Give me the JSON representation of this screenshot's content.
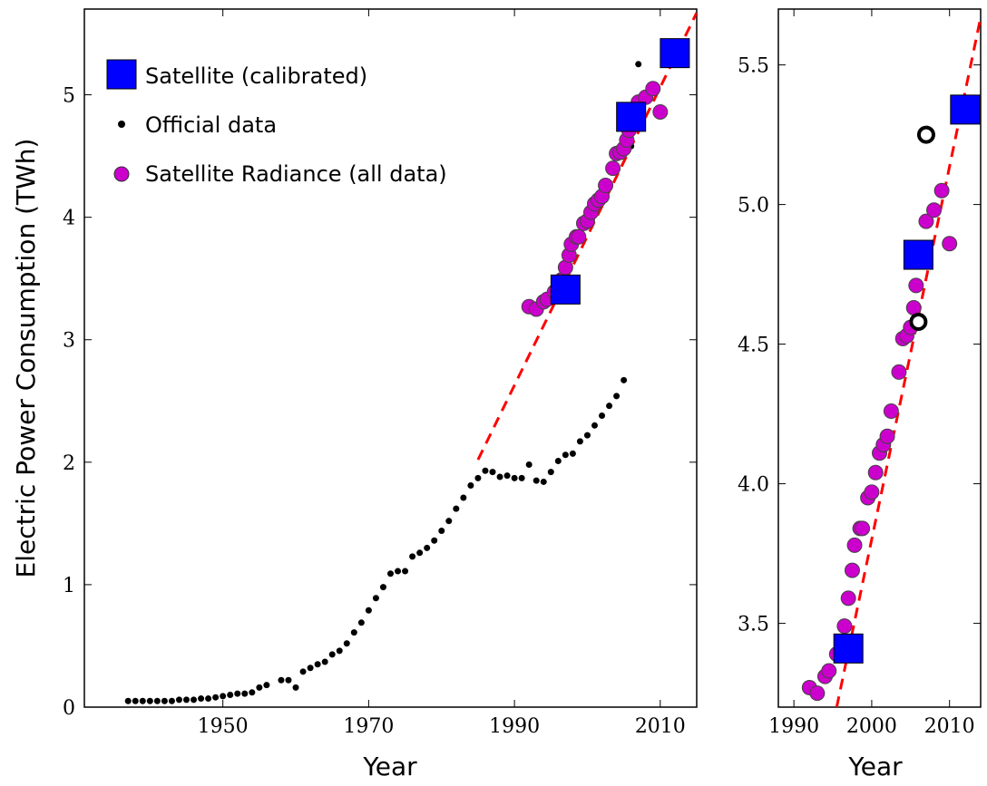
{
  "chart_data": [
    {
      "type": "scatter",
      "xlabel": "Year",
      "ylabel": "Electric Power Consumption (TWh)",
      "xlim": [
        1931,
        2015
      ],
      "ylim": [
        0,
        5.7
      ],
      "xticks": [
        "1950",
        "1970",
        "1990",
        "2010"
      ],
      "yticks": [
        "0",
        "1",
        "2",
        "3",
        "4",
        "5"
      ],
      "legend_position": "top-left",
      "legend": [
        "Satellite (calibrated)",
        "Official data",
        "Satellite Radiance (all data)"
      ],
      "series": [
        {
          "name": "Satellite (calibrated)",
          "marker": "square",
          "color": "#0000ff",
          "points": [
            [
              1997,
              3.41
            ],
            [
              2006,
              4.82
            ],
            [
              2012,
              5.34
            ]
          ]
        },
        {
          "name": "Official data",
          "marker": "dot",
          "color": "#000000",
          "points": [
            [
              1937,
              0.05
            ],
            [
              1938,
              0.05
            ],
            [
              1939,
              0.05
            ],
            [
              1940,
              0.05
            ],
            [
              1941,
              0.05
            ],
            [
              1942,
              0.05
            ],
            [
              1943,
              0.05
            ],
            [
              1944,
              0.06
            ],
            [
              1945,
              0.06
            ],
            [
              1946,
              0.06
            ],
            [
              1947,
              0.07
            ],
            [
              1948,
              0.07
            ],
            [
              1949,
              0.08
            ],
            [
              1950,
              0.09
            ],
            [
              1951,
              0.1
            ],
            [
              1952,
              0.11
            ],
            [
              1953,
              0.11
            ],
            [
              1954,
              0.12
            ],
            [
              1955,
              0.16
            ],
            [
              1956,
              0.18
            ],
            [
              1958,
              0.22
            ],
            [
              1959,
              0.22
            ],
            [
              1960,
              0.16
            ],
            [
              1961,
              0.29
            ],
            [
              1962,
              0.32
            ],
            [
              1963,
              0.35
            ],
            [
              1964,
              0.37
            ],
            [
              1965,
              0.43
            ],
            [
              1966,
              0.46
            ],
            [
              1967,
              0.52
            ],
            [
              1968,
              0.61
            ],
            [
              1969,
              0.69
            ],
            [
              1970,
              0.79
            ],
            [
              1971,
              0.89
            ],
            [
              1972,
              0.98
            ],
            [
              1973,
              1.09
            ],
            [
              1974,
              1.11
            ],
            [
              1975,
              1.11
            ],
            [
              1976,
              1.23
            ],
            [
              1977,
              1.26
            ],
            [
              1978,
              1.3
            ],
            [
              1979,
              1.36
            ],
            [
              1980,
              1.44
            ],
            [
              1981,
              1.52
            ],
            [
              1982,
              1.62
            ],
            [
              1983,
              1.71
            ],
            [
              1984,
              1.81
            ],
            [
              1985,
              1.87
            ],
            [
              1986,
              1.93
            ],
            [
              1987,
              1.92
            ],
            [
              1988,
              1.88
            ],
            [
              1989,
              1.89
            ],
            [
              1990,
              1.87
            ],
            [
              1991,
              1.87
            ],
            [
              1992,
              1.98
            ],
            [
              1993,
              1.85
            ],
            [
              1994,
              1.84
            ],
            [
              1995,
              1.92
            ],
            [
              1996,
              2.01
            ],
            [
              1997,
              2.06
            ],
            [
              1998,
              2.07
            ],
            [
              1999,
              2.17
            ],
            [
              2000,
              2.22
            ],
            [
              2001,
              2.3
            ],
            [
              2002,
              2.38
            ],
            [
              2003,
              2.46
            ],
            [
              2004,
              2.54
            ],
            [
              2005,
              2.67
            ],
            [
              2006,
              4.58
            ],
            [
              2007,
              5.25
            ]
          ]
        },
        {
          "name": "Satellite Radiance (all data)",
          "marker": "circle",
          "color": "#cc00cc",
          "points": [
            [
              1992,
              3.27
            ],
            [
              1993,
              3.25
            ],
            [
              1994,
              3.31
            ],
            [
              1994.5,
              3.33
            ],
            [
              1995.5,
              3.39
            ],
            [
              1996.5,
              3.49
            ],
            [
              1997,
              3.59
            ],
            [
              1997.5,
              3.69
            ],
            [
              1997.8,
              3.78
            ],
            [
              1998.5,
              3.84
            ],
            [
              1998.8,
              3.84
            ],
            [
              1999.5,
              3.95
            ],
            [
              2000,
              3.97
            ],
            [
              2000.5,
              4.04
            ],
            [
              2001,
              4.11
            ],
            [
              2001.5,
              4.14
            ],
            [
              2002,
              4.17
            ],
            [
              2002.5,
              4.26
            ],
            [
              2003.5,
              4.4
            ],
            [
              2004,
              4.52
            ],
            [
              2004.5,
              4.53
            ],
            [
              2005,
              4.56
            ],
            [
              2005.4,
              4.63
            ],
            [
              2005.7,
              4.71
            ],
            [
              2006.2,
              4.82
            ],
            [
              2006.6,
              4.81
            ],
            [
              2007,
              4.94
            ],
            [
              2008,
              4.98
            ],
            [
              2009,
              5.05
            ],
            [
              2010,
              4.86
            ]
          ]
        },
        {
          "name": "",
          "marker": "dashed-line",
          "color": "#ff0000",
          "points": [
            [
              1985,
              2.02
            ],
            [
              2015,
              5.67
            ]
          ]
        }
      ]
    },
    {
      "type": "scatter",
      "xlabel": "Year",
      "ylabel": "",
      "xlim": [
        1988,
        2014
      ],
      "ylim": [
        3.2,
        5.7
      ],
      "xticks": [
        "1990",
        "2000",
        "2010"
      ],
      "yticks": [
        "3.5",
        "4.0",
        "4.5",
        "5.0",
        "5.5"
      ],
      "series": [
        {
          "name": "Satellite (calibrated)",
          "marker": "square",
          "color": "#0000ff",
          "points": [
            [
              1997,
              3.41
            ],
            [
              2006,
              4.82
            ],
            [
              2012,
              5.34
            ]
          ]
        },
        {
          "name": "Official data",
          "marker": "ring",
          "color": "#000000",
          "points": [
            [
              2006,
              4.58
            ],
            [
              2007,
              5.25
            ]
          ]
        },
        {
          "name": "Satellite Radiance (all data)",
          "marker": "circle",
          "color": "#cc00cc",
          "points": [
            [
              1992,
              3.27
            ],
            [
              1993,
              3.25
            ],
            [
              1994,
              3.31
            ],
            [
              1994.5,
              3.33
            ],
            [
              1995.5,
              3.39
            ],
            [
              1996.5,
              3.49
            ],
            [
              1997,
              3.59
            ],
            [
              1997.5,
              3.69
            ],
            [
              1997.8,
              3.78
            ],
            [
              1998.5,
              3.84
            ],
            [
              1998.8,
              3.84
            ],
            [
              1999.5,
              3.95
            ],
            [
              2000,
              3.97
            ],
            [
              2000.5,
              4.04
            ],
            [
              2001,
              4.11
            ],
            [
              2001.5,
              4.14
            ],
            [
              2002,
              4.17
            ],
            [
              2002.5,
              4.26
            ],
            [
              2003.5,
              4.4
            ],
            [
              2004,
              4.52
            ],
            [
              2004.5,
              4.53
            ],
            [
              2005,
              4.56
            ],
            [
              2005.4,
              4.63
            ],
            [
              2005.7,
              4.71
            ],
            [
              2006.2,
              4.82
            ],
            [
              2006.6,
              4.81
            ],
            [
              2007,
              4.94
            ],
            [
              2008,
              4.98
            ],
            [
              2009,
              5.05
            ],
            [
              2010,
              4.86
            ]
          ]
        },
        {
          "name": "",
          "marker": "dashed-line",
          "color": "#ff0000",
          "points": [
            [
              1995.5,
              3.2
            ],
            [
              2014,
              5.67
            ]
          ]
        }
      ]
    }
  ]
}
